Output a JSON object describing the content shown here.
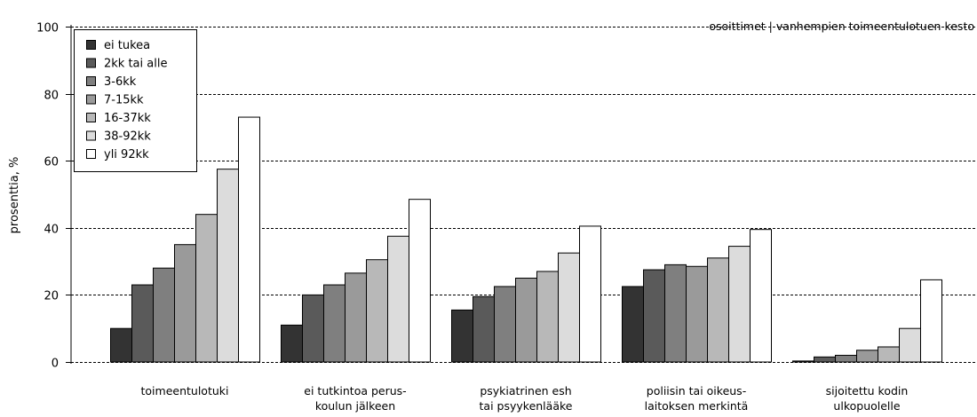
{
  "chart_data": {
    "type": "bar",
    "title": "",
    "annotation": "osoittimet | vanhempien toimeentulotuen kesto",
    "ylabel": "prosenttia, %",
    "xlabel": "",
    "ylim": [
      0,
      100
    ],
    "yticks": [
      0,
      20,
      40,
      60,
      80,
      100
    ],
    "grid": true,
    "legend_position": "top-left",
    "categories": [
      [
        "toimeentulotuki"
      ],
      [
        "ei tutkintoa perus-",
        "koulun jälkeen"
      ],
      [
        "psykiatrinen esh",
        "tai psyykenlääke"
      ],
      [
        "poliisin tai oikeus-",
        "laitoksen merkintä"
      ],
      [
        "sijoitettu kodin",
        "ulkopuolelle"
      ]
    ],
    "series": [
      {
        "name": "ei tukea",
        "color": "#333333",
        "values": [
          10.0,
          11.0,
          15.5,
          22.5,
          0.3
        ]
      },
      {
        "name": "2kk tai alle",
        "color": "#5a5a5a",
        "values": [
          23.0,
          20.0,
          19.5,
          27.5,
          1.5
        ]
      },
      {
        "name": "3-6kk",
        "color": "#7f7f7f",
        "values": [
          28.0,
          23.0,
          22.5,
          29.0,
          2.0
        ]
      },
      {
        "name": "7-15kk",
        "color": "#9a9a9a",
        "values": [
          35.0,
          26.5,
          25.0,
          28.5,
          3.5
        ]
      },
      {
        "name": "16-37kk",
        "color": "#b8b8b8",
        "values": [
          44.0,
          30.5,
          27.0,
          31.0,
          4.5
        ]
      },
      {
        "name": "38-92kk",
        "color": "#dcdcdc",
        "values": [
          57.5,
          37.5,
          32.5,
          34.5,
          10.0
        ]
      },
      {
        "name": "yli 92kk",
        "color": "#ffffff",
        "values": [
          73.0,
          48.5,
          40.5,
          39.5,
          24.5
        ]
      }
    ]
  }
}
